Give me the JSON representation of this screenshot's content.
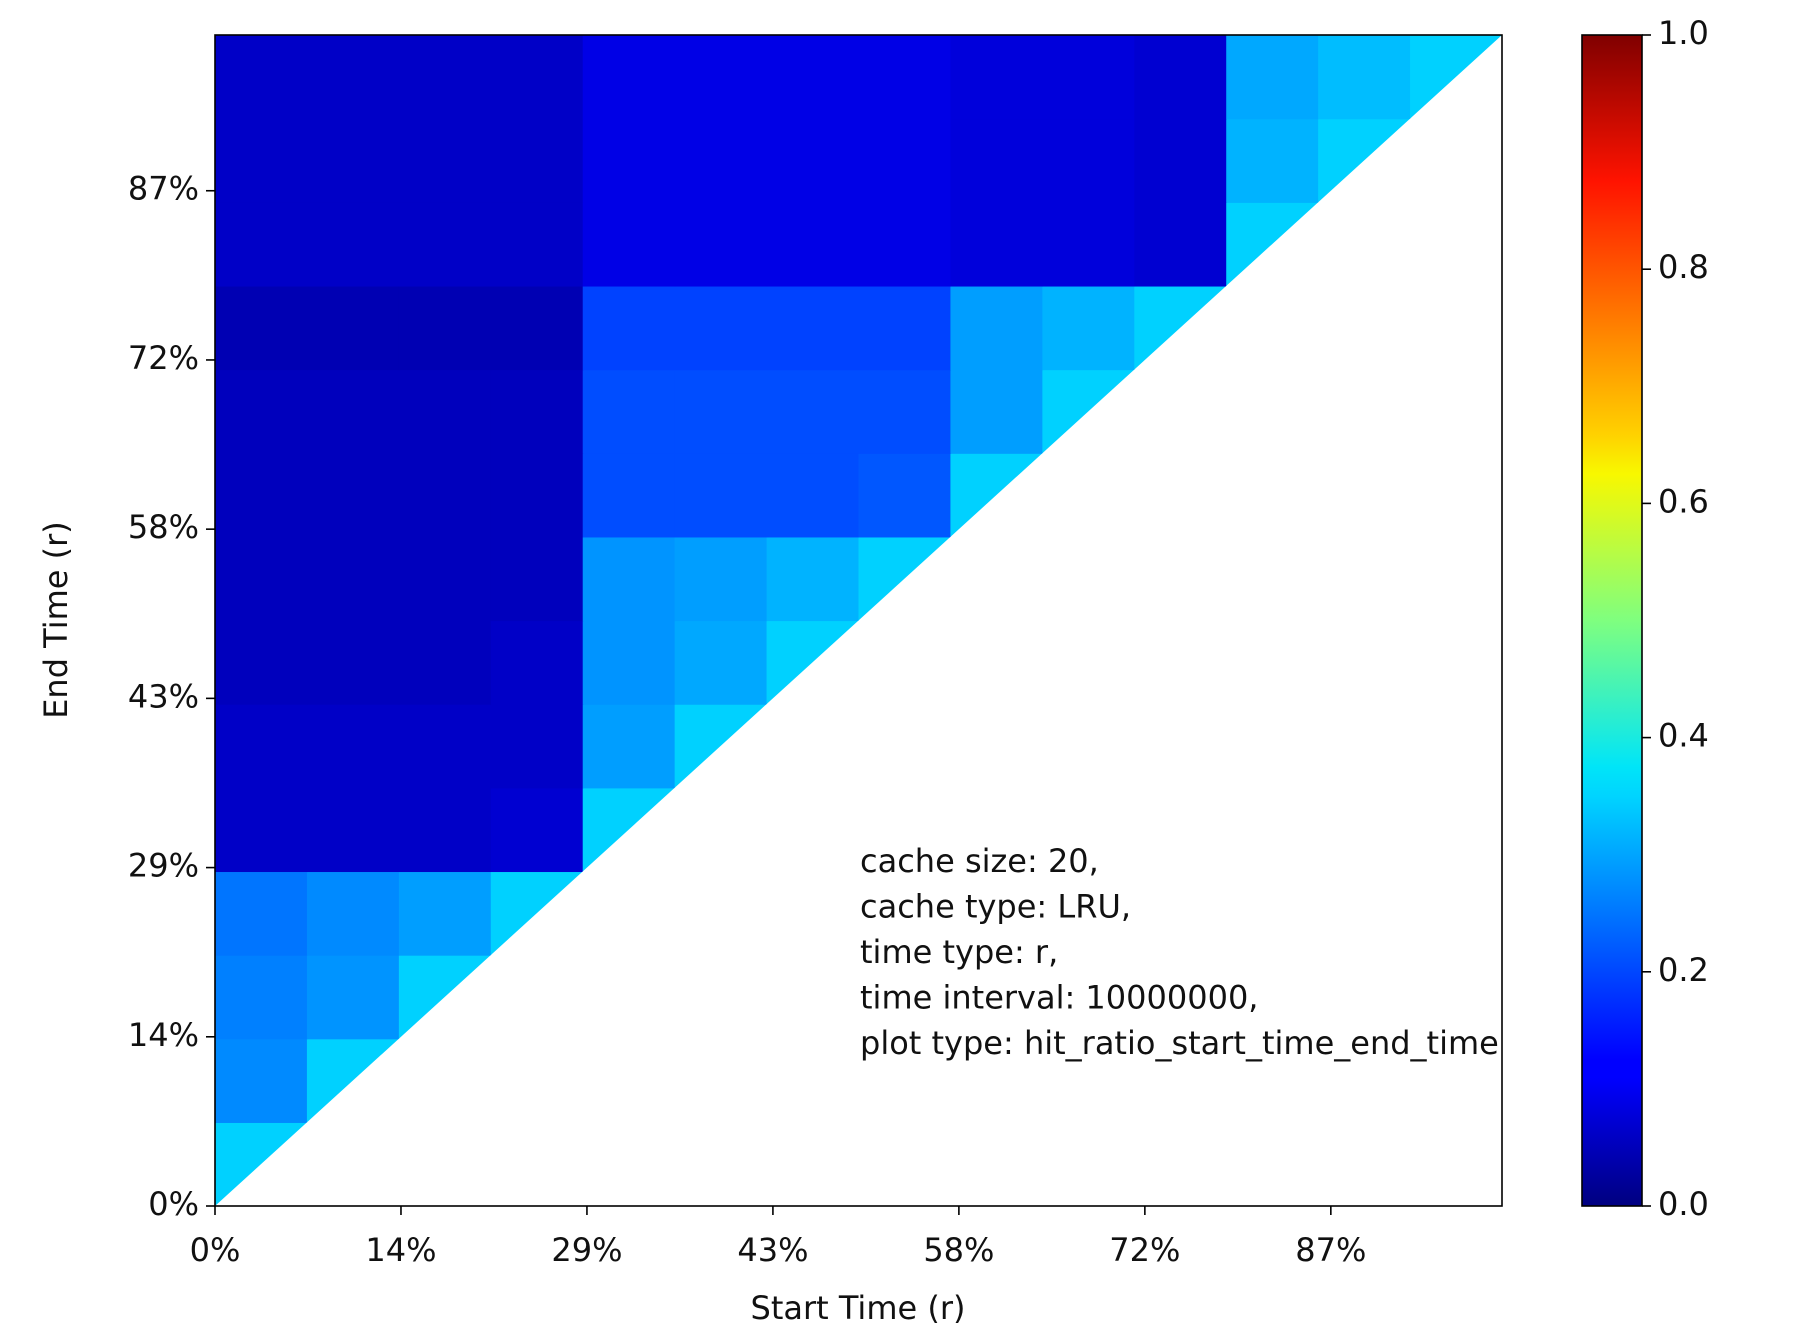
{
  "chart_data": {
    "type": "heatmap",
    "xlabel": "Start Time (r)",
    "ylabel": "End Time (r)",
    "colormap": "jet",
    "xlim": [
      0,
      100
    ],
    "ylim": [
      0,
      100
    ],
    "xticks": [
      {
        "value": 0,
        "label": "0%"
      },
      {
        "value": 14.45,
        "label": "14%"
      },
      {
        "value": 28.9,
        "label": "29%"
      },
      {
        "value": 43.35,
        "label": "43%"
      },
      {
        "value": 57.8,
        "label": "58%"
      },
      {
        "value": 72.25,
        "label": "72%"
      },
      {
        "value": 86.7,
        "label": "87%"
      }
    ],
    "yticks": [
      {
        "value": 0,
        "label": "0%"
      },
      {
        "value": 14.45,
        "label": "14%"
      },
      {
        "value": 28.9,
        "label": "29%"
      },
      {
        "value": 43.35,
        "label": "43%"
      },
      {
        "value": 57.8,
        "label": "58%"
      },
      {
        "value": 72.25,
        "label": "72%"
      },
      {
        "value": 86.7,
        "label": "87%"
      }
    ],
    "clim": [
      0,
      1
    ],
    "cticks": [
      {
        "value": 0,
        "label": "0.0"
      },
      0.2,
      0.4,
      0.6,
      0.8,
      {
        "value": 1,
        "label": "1.0"
      }
    ],
    "annotation": [
      "cache size: 20,",
      "cache type: LRU,",
      "time type:  r,",
      "time interval: 10000000,",
      "plot type: hit_ratio_start_time_end_time"
    ],
    "values": [
      [
        0.33,
        null,
        null,
        null,
        null,
        null,
        null,
        null,
        null,
        null,
        null,
        null,
        null,
        null
      ],
      [
        0.26,
        0.33,
        null,
        null,
        null,
        null,
        null,
        null,
        null,
        null,
        null,
        null,
        null,
        null
      ],
      [
        0.25,
        0.27,
        0.33,
        null,
        null,
        null,
        null,
        null,
        null,
        null,
        null,
        null,
        null,
        null
      ],
      [
        0.24,
        0.26,
        0.28,
        0.33,
        null,
        null,
        null,
        null,
        null,
        null,
        null,
        null,
        null,
        null
      ],
      [
        0.07,
        0.07,
        0.07,
        0.08,
        0.33,
        null,
        null,
        null,
        null,
        null,
        null,
        null,
        null,
        null
      ],
      [
        0.07,
        0.07,
        0.07,
        0.07,
        0.28,
        0.33,
        null,
        null,
        null,
        null,
        null,
        null,
        null,
        null
      ],
      [
        0.06,
        0.06,
        0.06,
        0.07,
        0.27,
        0.29,
        0.33,
        null,
        null,
        null,
        null,
        null,
        null,
        null
      ],
      [
        0.06,
        0.06,
        0.06,
        0.06,
        0.27,
        0.28,
        0.3,
        0.33,
        null,
        null,
        null,
        null,
        null,
        null
      ],
      [
        0.06,
        0.06,
        0.06,
        0.06,
        0.2,
        0.2,
        0.2,
        0.21,
        0.33,
        null,
        null,
        null,
        null,
        null
      ],
      [
        0.06,
        0.06,
        0.06,
        0.06,
        0.2,
        0.2,
        0.2,
        0.2,
        0.28,
        0.33,
        null,
        null,
        null,
        null
      ],
      [
        0.05,
        0.05,
        0.05,
        0.05,
        0.19,
        0.19,
        0.19,
        0.19,
        0.28,
        0.3,
        0.33,
        null,
        null,
        null
      ],
      [
        0.07,
        0.07,
        0.07,
        0.07,
        0.1,
        0.1,
        0.1,
        0.1,
        0.09,
        0.09,
        0.08,
        0.33,
        null,
        null
      ],
      [
        0.07,
        0.07,
        0.07,
        0.07,
        0.1,
        0.1,
        0.1,
        0.1,
        0.09,
        0.09,
        0.08,
        0.3,
        0.33,
        null
      ],
      [
        0.07,
        0.07,
        0.07,
        0.07,
        0.1,
        0.1,
        0.1,
        0.1,
        0.09,
        0.09,
        0.08,
        0.29,
        0.31,
        0.33
      ]
    ]
  }
}
